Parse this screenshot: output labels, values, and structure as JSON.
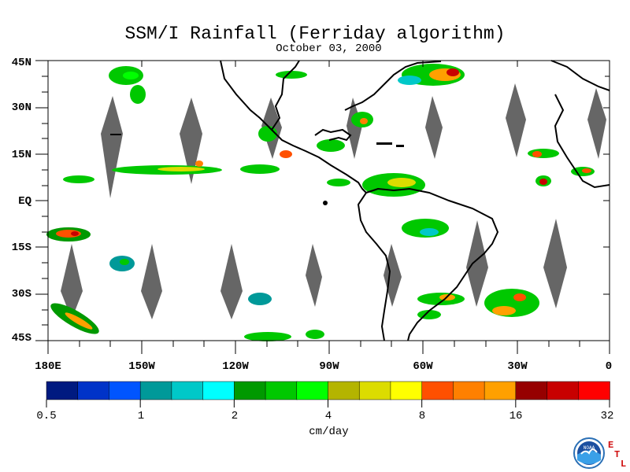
{
  "title": "SSM/I Rainfall (Ferriday algorithm)",
  "subtitle": "October 03, 2000",
  "lat_labels": [
    "45N",
    "30N",
    "15N",
    "EQ",
    "15S",
    "30S",
    "45S"
  ],
  "lon_labels": [
    "180E",
    "150W",
    "120W",
    "90W",
    "60W",
    "30W",
    "0"
  ],
  "colorbar": {
    "colors": [
      "#001a80",
      "#0033c8",
      "#0055ff",
      "#009999",
      "#00c8c8",
      "#00ffff",
      "#009900",
      "#00c800",
      "#00ff00",
      "#b4b400",
      "#dcdc00",
      "#ffff00",
      "#ff5000",
      "#ff8000",
      "#ffa000",
      "#960000",
      "#c80000",
      "#ff0000"
    ],
    "tick_labels": [
      "0.5",
      "1",
      "2",
      "4",
      "8",
      "16",
      "32"
    ],
    "units": "cm/day"
  },
  "logos": {
    "noaa": "NOAA",
    "etl": [
      "E",
      "T",
      "L"
    ]
  },
  "colors": {
    "gap_gray": "#666666",
    "coast": "#000000"
  }
}
